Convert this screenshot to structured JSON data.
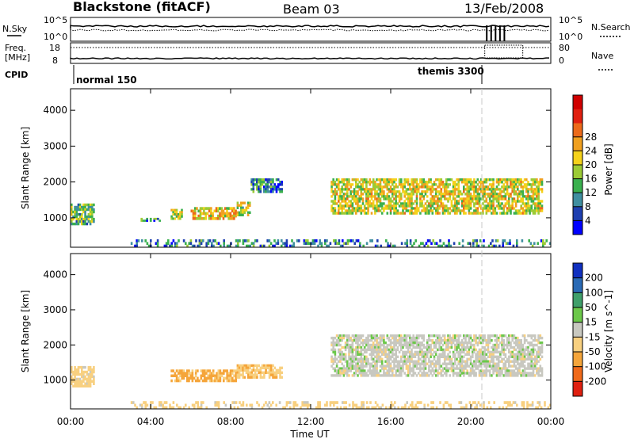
{
  "header": {
    "station": "Blackstone (fitACF)",
    "beam": "Beam 03",
    "date": "13/Feb/2008"
  },
  "strip": {
    "nsky_label": "N.Sky",
    "nsearch_label": "N.Search",
    "nsky_ticks": [
      "10^5",
      "10^0"
    ],
    "freq_label_1": "Freq.",
    "freq_label_2": "[MHz]",
    "freq_ticks": [
      "18",
      "8"
    ],
    "nave_label": "Nave",
    "nave_ticks": [
      "80",
      "0"
    ],
    "cpid_label": "CPID",
    "cpid_modes": [
      {
        "name": "normal 150",
        "start_hour": 0.0
      },
      {
        "name": "themis 3300",
        "start_hour": 20.7
      }
    ]
  },
  "chart_data": [
    {
      "type": "heatmap",
      "title": "Power",
      "xlabel": "",
      "ylabel": "Slant Range [km]",
      "x_range_hours": [
        0,
        24
      ],
      "ylim": [
        180,
        4600
      ],
      "y_ticks": [
        1000,
        2000,
        3000,
        4000
      ],
      "colorbar": {
        "label": "Power [dB]",
        "ticks": [
          "4",
          "8",
          "12",
          "16",
          "20",
          "24",
          "28"
        ],
        "colors": [
          "#0000ff",
          "#1e3fb0",
          "#3f8fa0",
          "#3ab04e",
          "#9ccb35",
          "#f5d21a",
          "#f0a020",
          "#ec6a1a",
          "#e02010",
          "#d00000"
        ]
      },
      "echo_regions": [
        {
          "start_hour": 0.0,
          "end_hour": 1.2,
          "range_km": [
            800,
            1400
          ],
          "level_db": 12
        },
        {
          "start_hour": 3.5,
          "end_hour": 4.5,
          "range_km": [
            900,
            1000
          ],
          "level_db": 8
        },
        {
          "start_hour": 5.0,
          "end_hour": 5.6,
          "range_km": [
            950,
            1250
          ],
          "level_db": 16
        },
        {
          "start_hour": 6.0,
          "end_hour": 8.3,
          "range_km": [
            950,
            1300
          ],
          "level_db": 18
        },
        {
          "start_hour": 8.3,
          "end_hour": 9.0,
          "range_km": [
            1050,
            1450
          ],
          "level_db": 14
        },
        {
          "start_hour": 9.0,
          "end_hour": 10.6,
          "range_km": [
            1700,
            2100
          ],
          "level_db": 8
        },
        {
          "start_hour": 13.0,
          "end_hour": 23.6,
          "range_km": [
            1100,
            2100
          ],
          "level_db": 16
        },
        {
          "start_hour": 3.0,
          "end_hour": 24.0,
          "range_km": [
            180,
            400
          ],
          "level_db": 8
        }
      ]
    },
    {
      "type": "heatmap",
      "title": "Velocity",
      "xlabel": "Time UT",
      "ylabel": "Slant Range [km]",
      "x_range_hours": [
        0,
        24
      ],
      "x_ticks": [
        "00:00",
        "04:00",
        "08:00",
        "12:00",
        "16:00",
        "20:00",
        "00:00"
      ],
      "ylim": [
        180,
        4600
      ],
      "y_ticks": [
        1000,
        2000,
        3000,
        4000
      ],
      "colorbar": {
        "label": "Velocity [m s^-1]",
        "ticks": [
          "200",
          "100",
          "50",
          "15",
          "-15",
          "-50",
          "-100",
          "-200"
        ],
        "colors": [
          "#1030c0",
          "#2a6ab5",
          "#3f9f6a",
          "#6cc84a",
          "#c8c8c0",
          "#f8d080",
          "#f5a53a",
          "#f06a1a",
          "#e02010"
        ]
      },
      "echo_regions": [
        {
          "start_hour": 0.0,
          "end_hour": 1.2,
          "range_km": [
            800,
            1400
          ],
          "velocity_ms": -30
        },
        {
          "start_hour": 5.0,
          "end_hour": 8.3,
          "range_km": [
            950,
            1300
          ],
          "velocity_ms": -60
        },
        {
          "start_hour": 8.3,
          "end_hour": 10.6,
          "range_km": [
            1050,
            1450
          ],
          "velocity_ms": -40
        },
        {
          "start_hour": 13.0,
          "end_hour": 23.6,
          "range_km": [
            1100,
            2300
          ],
          "velocity_ms": 0
        },
        {
          "start_hour": 3.0,
          "end_hour": 24.0,
          "range_km": [
            180,
            400
          ],
          "velocity_ms": -30
        }
      ]
    }
  ]
}
